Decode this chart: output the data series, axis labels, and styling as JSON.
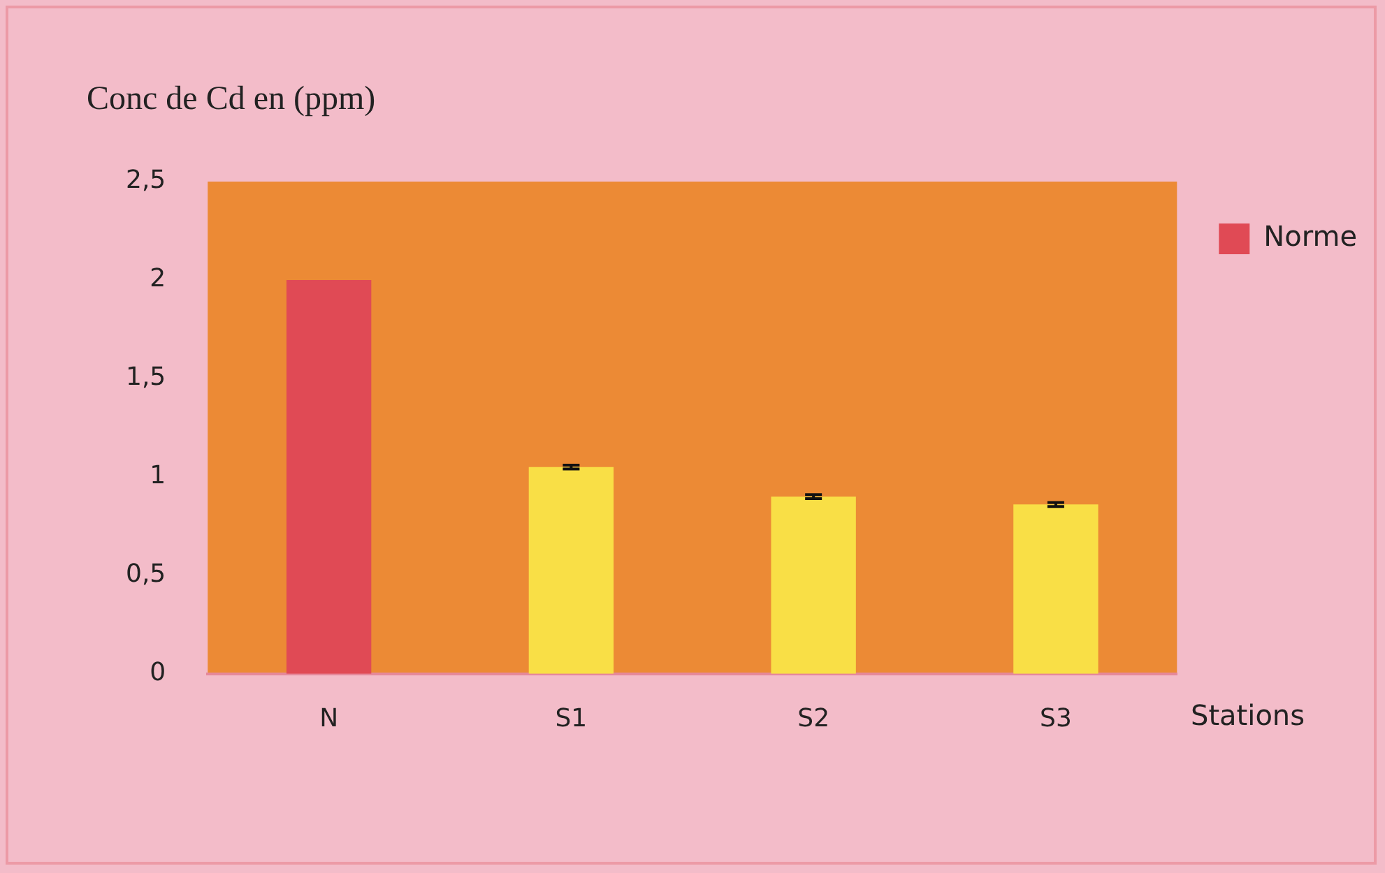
{
  "chart_data": {
    "type": "bar",
    "ylabel": "Conc de Cd en (ppm)",
    "xlabel": "Stations",
    "categories": [
      "N",
      "S1",
      "S2",
      "S3"
    ],
    "series": [
      {
        "name": "Norme",
        "color": "#e04a55",
        "values": [
          2,
          null,
          null,
          null
        ]
      },
      {
        "color": "#f9df46",
        "values": [
          null,
          1.05,
          0.9,
          0.86
        ],
        "errors": [
          null,
          0.01,
          0.01,
          0.01
        ]
      }
    ],
    "ylim": [
      0,
      2.5
    ],
    "yticks": [
      0,
      {
        "value": 0.5,
        "label": "0,5"
      },
      1,
      {
        "value": 1.5,
        "label": "1,5"
      },
      2,
      {
        "value": 2.5,
        "label": "2,5"
      }
    ],
    "grid": false,
    "legend": "right"
  }
}
